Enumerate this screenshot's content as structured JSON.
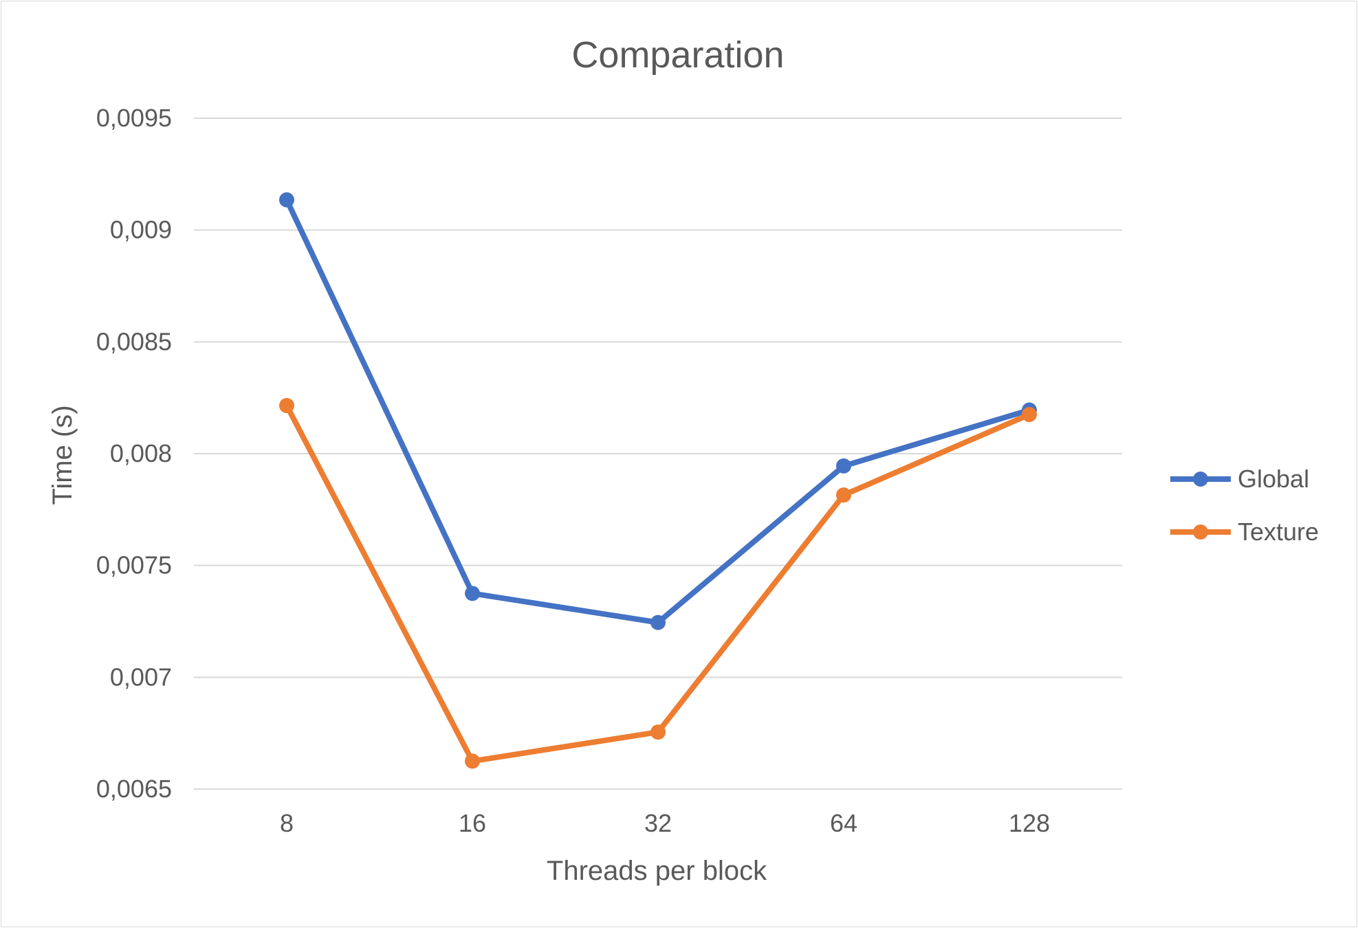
{
  "chart_data": {
    "type": "line",
    "title": "Comparation",
    "xlabel": "Threads per block",
    "ylabel": "Time (s)",
    "categories": [
      "8",
      "16",
      "32",
      "64",
      "128"
    ],
    "ylim": [
      0.0065,
      0.0095
    ],
    "yticks": [
      {
        "value": 0.0065,
        "label": "0,0065"
      },
      {
        "value": 0.007,
        "label": "0,007"
      },
      {
        "value": 0.0075,
        "label": "0,0075"
      },
      {
        "value": 0.008,
        "label": "0,008"
      },
      {
        "value": 0.0085,
        "label": "0,0085"
      },
      {
        "value": 0.009,
        "label": "0,009"
      },
      {
        "value": 0.0095,
        "label": "0,0095"
      }
    ],
    "grid": true,
    "legend_position": "right",
    "series": [
      {
        "name": "Global",
        "color": "#4472C4",
        "values": [
          0.009135,
          0.007375,
          0.007245,
          0.007945,
          0.008195
        ]
      },
      {
        "name": "Texture",
        "color": "#ED7D31",
        "values": [
          0.008215,
          0.006625,
          0.006755,
          0.007815,
          0.008175
        ]
      }
    ]
  }
}
